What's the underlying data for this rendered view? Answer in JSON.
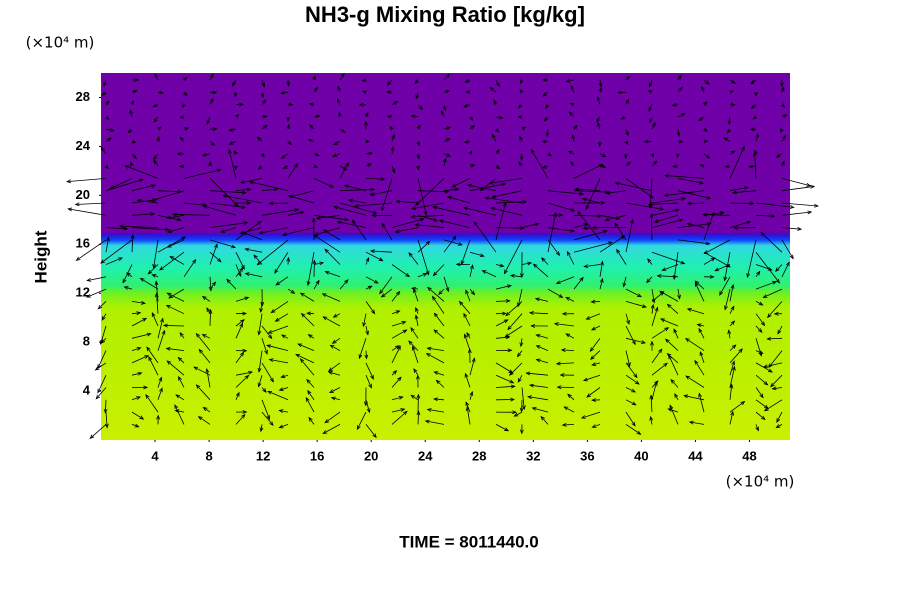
{
  "chart_data": {
    "type": "field",
    "title": "NH3-g Mixing Ratio [kg/kg]",
    "ylabel": "Height",
    "y_unit": "(×10⁴ m)",
    "x_unit": "(×10⁴ m)",
    "annotation": "TIME = 8011440.0",
    "xlim": [
      0,
      51
    ],
    "ylim": [
      0,
      30
    ],
    "xticks": [
      4,
      8,
      12,
      16,
      20,
      24,
      28,
      32,
      36,
      40,
      44,
      48
    ],
    "yticks": [
      4,
      8,
      12,
      16,
      20,
      24,
      28
    ]
  }
}
